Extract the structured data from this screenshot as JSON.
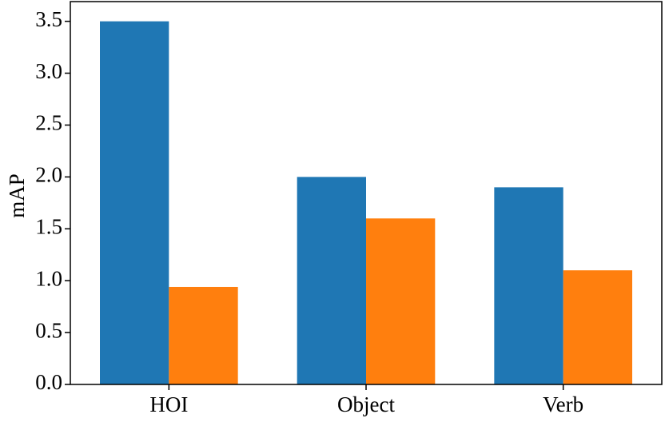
{
  "chart_data": {
    "type": "bar",
    "y_label": "mAP",
    "categories": [
      "HOI",
      "Object",
      "Verb"
    ],
    "series": [
      {
        "color": "#1f77b4",
        "values": [
          3.5,
          2.0,
          1.9
        ]
      },
      {
        "color": "#ff7f0e",
        "values": [
          0.94,
          1.6,
          1.1
        ]
      }
    ],
    "ylim": [
      0,
      3.69
    ],
    "yticks": [
      {
        "value": 0,
        "label": "0.0"
      },
      0.5,
      {
        "value": 1,
        "label": "1.0"
      },
      1.5,
      {
        "value": 2,
        "label": "2.0"
      },
      2.5,
      {
        "value": 3,
        "label": "3.0"
      },
      3.5
    ],
    "grid": false
  }
}
